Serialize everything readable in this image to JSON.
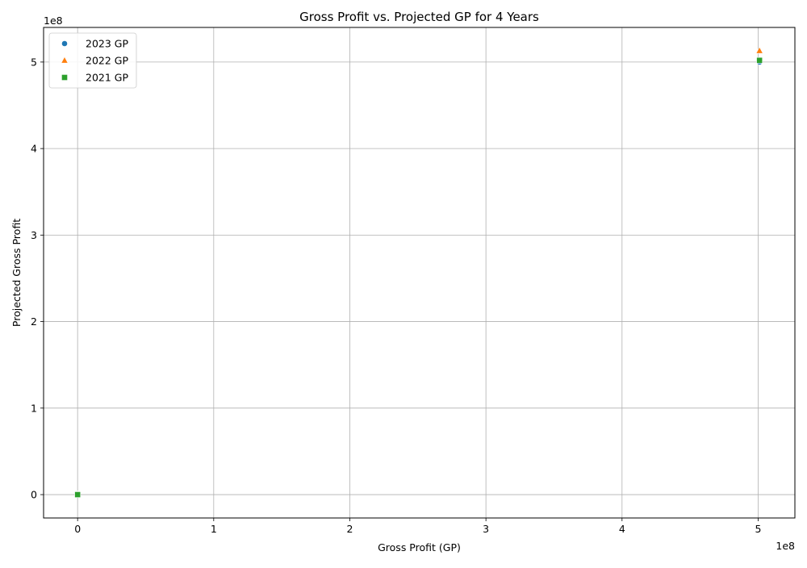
{
  "chart_data": {
    "type": "scatter",
    "title": "Gross Profit vs. Projected GP for 4 Years",
    "xlabel": "Gross Profit (GP)",
    "ylabel": "Projected Gross Profit",
    "x_offset_text": "1e8",
    "y_offset_text": "1e8",
    "xlim": [
      -0.25,
      5.27
    ],
    "ylim": [
      -0.27,
      5.4
    ],
    "x_ticks": [
      0,
      1,
      2,
      3,
      4,
      5
    ],
    "x_tick_labels": [
      "0",
      "1",
      "2",
      "3",
      "4",
      "5"
    ],
    "y_ticks": [
      0,
      1,
      2,
      3,
      4,
      5
    ],
    "y_tick_labels": [
      "0",
      "1",
      "2",
      "3",
      "4",
      "5"
    ],
    "grid": true,
    "legend_position": "top-left",
    "series": [
      {
        "name": "2023 GP",
        "marker": "circle",
        "color": "#1f77b4",
        "points": [
          [
            0.0,
            0.0
          ],
          [
            5.01,
            5.0
          ]
        ]
      },
      {
        "name": "2022 GP",
        "marker": "triangle",
        "color": "#ff7f0e",
        "points": [
          [
            0.0,
            0.0
          ],
          [
            5.01,
            5.13
          ]
        ]
      },
      {
        "name": "2021 GP",
        "marker": "square",
        "color": "#2ca02c",
        "points": [
          [
            0.0,
            0.0
          ],
          [
            5.01,
            5.02
          ]
        ]
      }
    ]
  }
}
